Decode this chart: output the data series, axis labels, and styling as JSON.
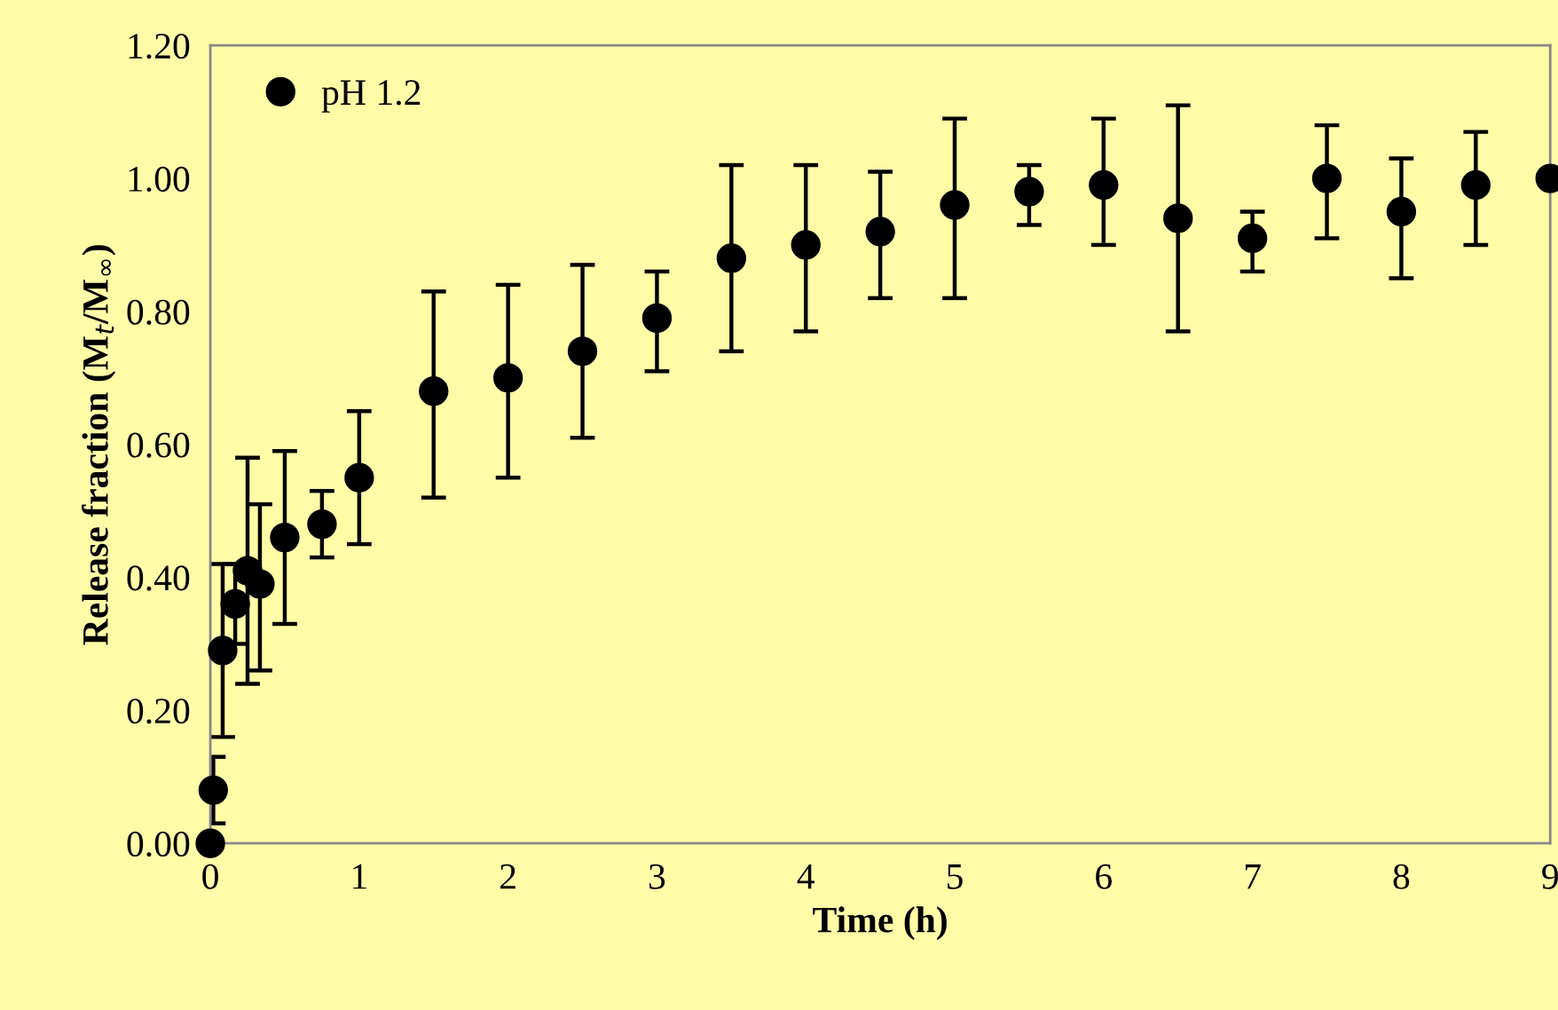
{
  "chart_data": {
    "type": "scatter",
    "xlabel": "Time (h)",
    "ylabel": "Release fraction (M$_{t}$/M$_{∞}$)",
    "xlim": [
      0,
      9
    ],
    "xticks": [
      0,
      1,
      2,
      3,
      4,
      5,
      6,
      7,
      8,
      9
    ],
    "ylim": [
      0,
      1.2
    ],
    "yticks": [
      {
        "value": 0,
        "label": "0.00"
      },
      {
        "value": 0.2,
        "label": "0.20"
      },
      {
        "value": 0.4,
        "label": "0.40"
      },
      {
        "value": 0.6,
        "label": "0.60"
      },
      {
        "value": 0.8,
        "label": "0.80"
      },
      {
        "value": 1.0,
        "label": "1.00"
      },
      {
        "value": 1.2,
        "label": "1.20"
      }
    ],
    "grid": false,
    "legend": "top left",
    "marker": "circle",
    "series": [
      {
        "name": "pH 1.2",
        "color": "#000000",
        "x": [
          0,
          0.02,
          0.083,
          0.167,
          0.25,
          0.333,
          0.5,
          0.75,
          1,
          1.5,
          2,
          2.5,
          3,
          3.5,
          4,
          4.5,
          5,
          5.5,
          6,
          6.5,
          7,
          7.5,
          8,
          8.5,
          9
        ],
        "values": [
          0,
          0.08,
          0.29,
          0.36,
          0.41,
          0.39,
          0.46,
          0.48,
          0.55,
          0.68,
          0.7,
          0.74,
          0.79,
          0.88,
          0.9,
          0.92,
          0.96,
          0.98,
          0.99,
          0.94,
          0.91,
          1.0,
          0.95,
          0.99,
          1.0
        ],
        "errors": [
          null,
          [
            0.03,
            0.13
          ],
          [
            0.16,
            0.42
          ],
          [
            0.3,
            0.42
          ],
          [
            0.24,
            0.58
          ],
          [
            0.26,
            0.51
          ],
          [
            0.33,
            0.59
          ],
          [
            0.43,
            0.53
          ],
          [
            0.45,
            0.65
          ],
          [
            0.52,
            0.83
          ],
          [
            0.55,
            0.84
          ],
          [
            0.61,
            0.87
          ],
          [
            0.71,
            0.86
          ],
          [
            0.74,
            1.02
          ],
          [
            0.77,
            1.02
          ],
          [
            0.82,
            1.01
          ],
          [
            0.82,
            1.09
          ],
          [
            0.93,
            1.02
          ],
          [
            0.9,
            1.09
          ],
          [
            0.77,
            1.11
          ],
          [
            0.86,
            0.95
          ],
          [
            0.91,
            1.08
          ],
          [
            0.85,
            1.03
          ],
          [
            0.9,
            1.07
          ],
          null
        ]
      }
    ]
  }
}
